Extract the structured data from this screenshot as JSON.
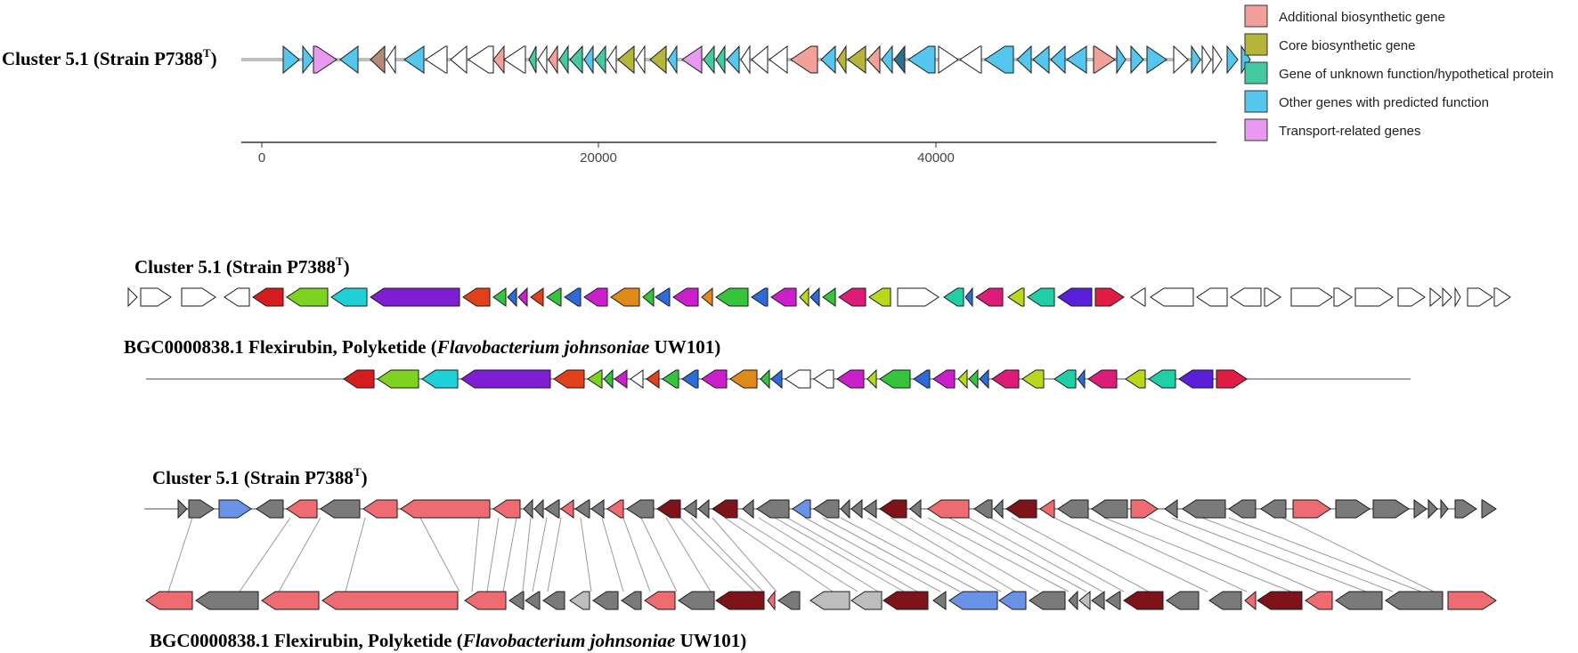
{
  "labels": {
    "top_cluster": "Cluster 5.1 (Strain P7388",
    "sup": "T",
    "close": ")",
    "mid_cluster": "Cluster 5.1 (Strain P7388",
    "mid_bgc_pre": "BGC0000838.1 Flexirubin, Polyketide (",
    "mid_bgc_ital": "Flavobacterium johnsoniae",
    "mid_bgc_post": " UW101)",
    "bot_cluster": "Cluster 5.1 (Strain P7388",
    "bot_bgc_pre": "BGC0000838.1 Flexirubin, Polyketide (",
    "bot_bgc_ital": "Flavobacterium johnsoniae",
    "bot_bgc_post": " UW101)"
  },
  "axis": {
    "ticks": [
      "0",
      "20000",
      "40000"
    ]
  },
  "legend": [
    {
      "label": "Additional biosynthetic gene",
      "color": "#f4a09a"
    },
    {
      "label": "Core biosynthetic gene",
      "color": "#b5b53a"
    },
    {
      "label": "Gene of unknown function/hypothetical protein",
      "color": "#44c9a0"
    },
    {
      "label": "Other genes with predicted function",
      "color": "#55c6ee"
    },
    {
      "label": "Transport-related genes",
      "color": "#e99af0"
    }
  ]
}
